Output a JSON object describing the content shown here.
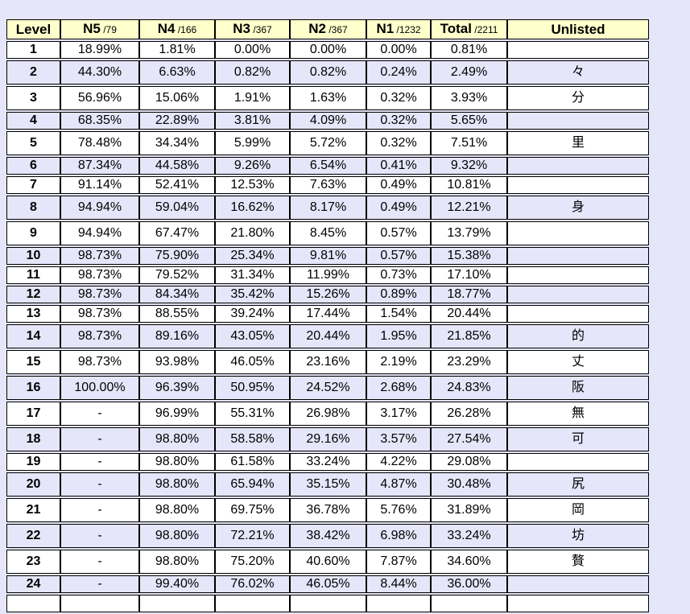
{
  "page": {
    "background_color": "#E6E6FA"
  },
  "table": {
    "header_background": "#FFFFCC",
    "row_alt_background": "#E6E6FA",
    "border_color": "#000000",
    "columns": [
      {
        "label": "Level",
        "sub": ""
      },
      {
        "label": "N5",
        "sub": "/79"
      },
      {
        "label": "N4",
        "sub": "/166"
      },
      {
        "label": "N3",
        "sub": "/367"
      },
      {
        "label": "N2",
        "sub": "/367"
      },
      {
        "label": "N1",
        "sub": "/1232"
      },
      {
        "label": "Total",
        "sub": "/2211"
      },
      {
        "label": "Unlisted",
        "sub": ""
      }
    ],
    "rows": [
      {
        "level": "1",
        "cells": [
          "18.99%",
          "1.81%",
          "0.00%",
          "0.00%",
          "0.00%",
          "0.81%"
        ],
        "unlisted": "",
        "tall": false
      },
      {
        "level": "2",
        "cells": [
          "44.30%",
          "6.63%",
          "0.82%",
          "0.82%",
          "0.24%",
          "2.49%"
        ],
        "unlisted": "々",
        "tall": true
      },
      {
        "level": "3",
        "cells": [
          "56.96%",
          "15.06%",
          "1.91%",
          "1.63%",
          "0.32%",
          "3.93%"
        ],
        "unlisted": "分",
        "tall": true
      },
      {
        "level": "4",
        "cells": [
          "68.35%",
          "22.89%",
          "3.81%",
          "4.09%",
          "0.32%",
          "5.65%"
        ],
        "unlisted": "",
        "tall": false
      },
      {
        "level": "5",
        "cells": [
          "78.48%",
          "34.34%",
          "5.99%",
          "5.72%",
          "0.32%",
          "7.51%"
        ],
        "unlisted": "里",
        "tall": true
      },
      {
        "level": "6",
        "cells": [
          "87.34%",
          "44.58%",
          "9.26%",
          "6.54%",
          "0.41%",
          "9.32%"
        ],
        "unlisted": "",
        "tall": false
      },
      {
        "level": "7",
        "cells": [
          "91.14%",
          "52.41%",
          "12.53%",
          "7.63%",
          "0.49%",
          "10.81%"
        ],
        "unlisted": "",
        "tall": false
      },
      {
        "level": "8",
        "cells": [
          "94.94%",
          "59.04%",
          "16.62%",
          "8.17%",
          "0.49%",
          "12.21%"
        ],
        "unlisted": "身",
        "tall": true
      },
      {
        "level": "9",
        "cells": [
          "94.94%",
          "67.47%",
          "21.80%",
          "8.45%",
          "0.57%",
          "13.79%"
        ],
        "unlisted": "",
        "tall": true
      },
      {
        "level": "10",
        "cells": [
          "98.73%",
          "75.90%",
          "25.34%",
          "9.81%",
          "0.57%",
          "15.38%"
        ],
        "unlisted": "",
        "tall": false
      },
      {
        "level": "11",
        "cells": [
          "98.73%",
          "79.52%",
          "31.34%",
          "11.99%",
          "0.73%",
          "17.10%"
        ],
        "unlisted": "",
        "tall": false
      },
      {
        "level": "12",
        "cells": [
          "98.73%",
          "84.34%",
          "35.42%",
          "15.26%",
          "0.89%",
          "18.77%"
        ],
        "unlisted": "",
        "tall": false
      },
      {
        "level": "13",
        "cells": [
          "98.73%",
          "88.55%",
          "39.24%",
          "17.44%",
          "1.54%",
          "20.44%"
        ],
        "unlisted": "",
        "tall": false
      },
      {
        "level": "14",
        "cells": [
          "98.73%",
          "89.16%",
          "43.05%",
          "20.44%",
          "1.95%",
          "21.85%"
        ],
        "unlisted": "的",
        "tall": true
      },
      {
        "level": "15",
        "cells": [
          "98.73%",
          "93.98%",
          "46.05%",
          "23.16%",
          "2.19%",
          "23.29%"
        ],
        "unlisted": "丈",
        "tall": true
      },
      {
        "level": "16",
        "cells": [
          "100.00%",
          "96.39%",
          "50.95%",
          "24.52%",
          "2.68%",
          "24.83%"
        ],
        "unlisted": "阪",
        "tall": true
      },
      {
        "level": "17",
        "cells": [
          "-",
          "96.99%",
          "55.31%",
          "26.98%",
          "3.17%",
          "26.28%"
        ],
        "unlisted": "無",
        "tall": true
      },
      {
        "level": "18",
        "cells": [
          "-",
          "98.80%",
          "58.58%",
          "29.16%",
          "3.57%",
          "27.54%"
        ],
        "unlisted": "可",
        "tall": true
      },
      {
        "level": "19",
        "cells": [
          "-",
          "98.80%",
          "61.58%",
          "33.24%",
          "4.22%",
          "29.08%"
        ],
        "unlisted": "",
        "tall": false
      },
      {
        "level": "20",
        "cells": [
          "-",
          "98.80%",
          "65.94%",
          "35.15%",
          "4.87%",
          "30.48%"
        ],
        "unlisted": "尻",
        "tall": true
      },
      {
        "level": "21",
        "cells": [
          "-",
          "98.80%",
          "69.75%",
          "36.78%",
          "5.76%",
          "31.89%"
        ],
        "unlisted": "岡",
        "tall": true
      },
      {
        "level": "22",
        "cells": [
          "-",
          "98.80%",
          "72.21%",
          "38.42%",
          "6.98%",
          "33.24%"
        ],
        "unlisted": "坊",
        "tall": true
      },
      {
        "level": "23",
        "cells": [
          "-",
          "98.80%",
          "75.20%",
          "40.60%",
          "7.87%",
          "34.60%"
        ],
        "unlisted": "贅",
        "tall": true
      },
      {
        "level": "24",
        "cells": [
          "-",
          "99.40%",
          "76.02%",
          "46.05%",
          "8.44%",
          "36.00%"
        ],
        "unlisted": "",
        "tall": false
      },
      {
        "level": "",
        "cells": [
          "",
          "",
          "",
          "",
          "",
          ""
        ],
        "unlisted": "",
        "tall": false,
        "partial": true
      }
    ]
  }
}
